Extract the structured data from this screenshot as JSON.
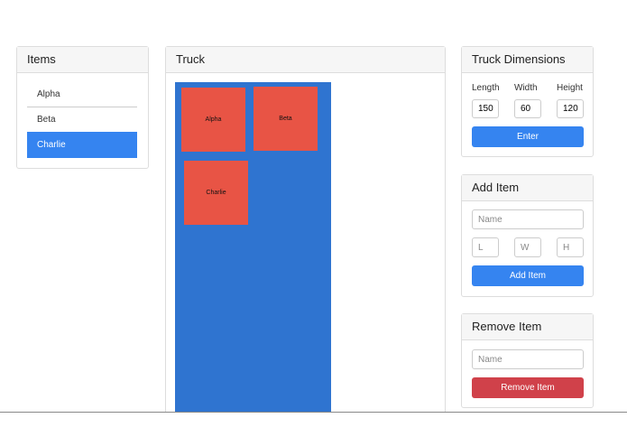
{
  "items_panel": {
    "title": "Items",
    "list": [
      "Alpha",
      "Beta",
      "Charlie"
    ]
  },
  "truck_panel": {
    "title": "Truck",
    "boxes": [
      "Alpha",
      "Beta",
      "Charlie"
    ]
  },
  "dimensions_panel": {
    "title": "Truck Dimensions",
    "fields": [
      {
        "label": "Length",
        "value": "150"
      },
      {
        "label": "Width",
        "value": "60"
      },
      {
        "label": "Height",
        "value": "120"
      }
    ],
    "button": "Enter"
  },
  "add_panel": {
    "title": "Add Item",
    "name_placeholder": "Name",
    "dims": [
      "L",
      "W",
      "H"
    ],
    "button": "Add Item"
  },
  "remove_panel": {
    "title": "Remove Item",
    "name_placeholder": "Name",
    "button": "Remove Item"
  }
}
